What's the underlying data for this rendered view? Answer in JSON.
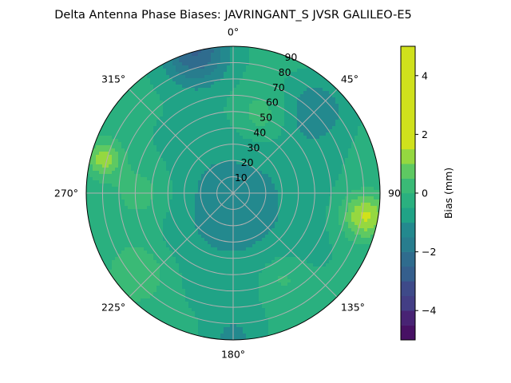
{
  "chart_data": {
    "type": "polar-contour",
    "title": "Delta Antenna Phase Biases: JAVRINGANT_S    JVSR GALILEO-E5",
    "angular_tick_labels": [
      "0°",
      "45°",
      "90°",
      "135°",
      "180°",
      "225°",
      "270°",
      "315°"
    ],
    "angular_ticks_deg": [
      0,
      45,
      90,
      135,
      180,
      225,
      270,
      315
    ],
    "radial_tick_labels": [
      "10",
      "20",
      "30",
      "40",
      "50",
      "60",
      "70",
      "80",
      "90"
    ],
    "radial_ticks": [
      10,
      20,
      30,
      40,
      50,
      60,
      70,
      80,
      90
    ],
    "rlim": [
      0,
      90
    ],
    "grid": true,
    "colorbar": {
      "label": "Bias (mm)",
      "range": [
        -5,
        5
      ],
      "levels": [
        -5,
        -4.5,
        -4,
        -3.5,
        -3,
        -2.5,
        -2,
        -1.5,
        -1,
        -0.5,
        0,
        0.5,
        1,
        1.5,
        2,
        2.5,
        3,
        3.5,
        4,
        4.5,
        5
      ],
      "colors": [
        "#471164",
        "#482374",
        "#433e85",
        "#3e4a89",
        "#355f8d",
        "#2f6c8e",
        "#287d8e",
        "#23898e",
        "#20a386",
        "#2ab07f",
        "#3aba76",
        "#5ec962",
        "#95d840",
        "#d0e11c"
      ],
      "tick_labels": [
        "4",
        "2",
        "0",
        "−2",
        "−4"
      ],
      "ticks": [
        4,
        2,
        0,
        -2,
        -4
      ]
    },
    "field": {
      "base": -0.3,
      "features": [
        {
          "az": 345,
          "el": 90,
          "amp": -2.2,
          "sigma": 14
        },
        {
          "az": 45,
          "el": 72,
          "amp": -1.0,
          "sigma": 14
        },
        {
          "az": 180,
          "el": 8,
          "amp": -0.9,
          "sigma": 40
        },
        {
          "az": 100,
          "el": 82,
          "amp": 2.0,
          "sigma": 10
        },
        {
          "az": 285,
          "el": 82,
          "amp": 1.6,
          "sigma": 8
        },
        {
          "az": 20,
          "el": 50,
          "amp": 0.8,
          "sigma": 12
        },
        {
          "az": 270,
          "el": 55,
          "amp": 0.8,
          "sigma": 14
        },
        {
          "az": 230,
          "el": 75,
          "amp": 0.9,
          "sigma": 14
        },
        {
          "az": 150,
          "el": 60,
          "amp": 0.7,
          "sigma": 10
        },
        {
          "az": 180,
          "el": 90,
          "amp": -0.8,
          "sigma": 10
        }
      ]
    }
  }
}
